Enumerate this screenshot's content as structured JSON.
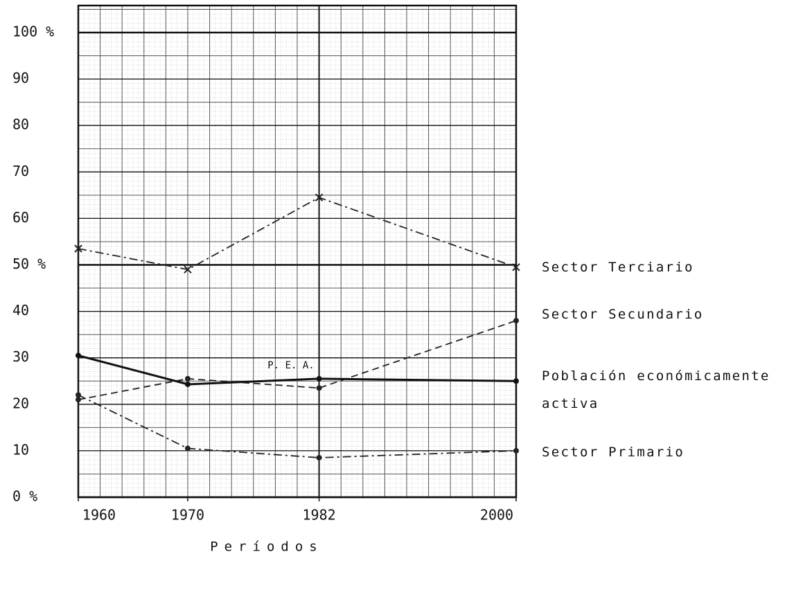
{
  "chart_data": {
    "type": "line",
    "xlabel": "Períodos",
    "x": [
      1960,
      1970,
      1982,
      2000
    ],
    "xlim": [
      1960,
      2000
    ],
    "xticks": [
      1960,
      1970,
      1982,
      2000
    ],
    "ylim": [
      0,
      100
    ],
    "yticks": [
      {
        "value": 0,
        "label": "0 %"
      },
      10,
      20,
      30,
      40,
      {
        "value": 50,
        "label": "50 %"
      },
      60,
      70,
      80,
      90,
      {
        "value": 100,
        "label": "100 %"
      }
    ],
    "grid": true,
    "legend": "right",
    "annotation": "P. E. A.",
    "series": [
      {
        "name": "Sector Terciario",
        "color": "#222222",
        "line_style": "dashdot",
        "marker": "x",
        "values": [
          53.5,
          49,
          64.5,
          49.5
        ]
      },
      {
        "name": "Sector Secundario",
        "color": "#222222",
        "line_style": "dashed",
        "marker": "circle",
        "values": [
          21,
          25.5,
          23.5,
          38
        ]
      },
      {
        "name": "Población económicamente activa",
        "color": "#111111",
        "line_style": "solid",
        "marker": "circle",
        "values": [
          30.5,
          24.3,
          25.5,
          25
        ]
      },
      {
        "name": "Sector Primario",
        "color": "#222222",
        "line_style": "dashdot",
        "marker": "circle",
        "values": [
          22,
          10.5,
          8.5,
          10
        ]
      }
    ]
  }
}
